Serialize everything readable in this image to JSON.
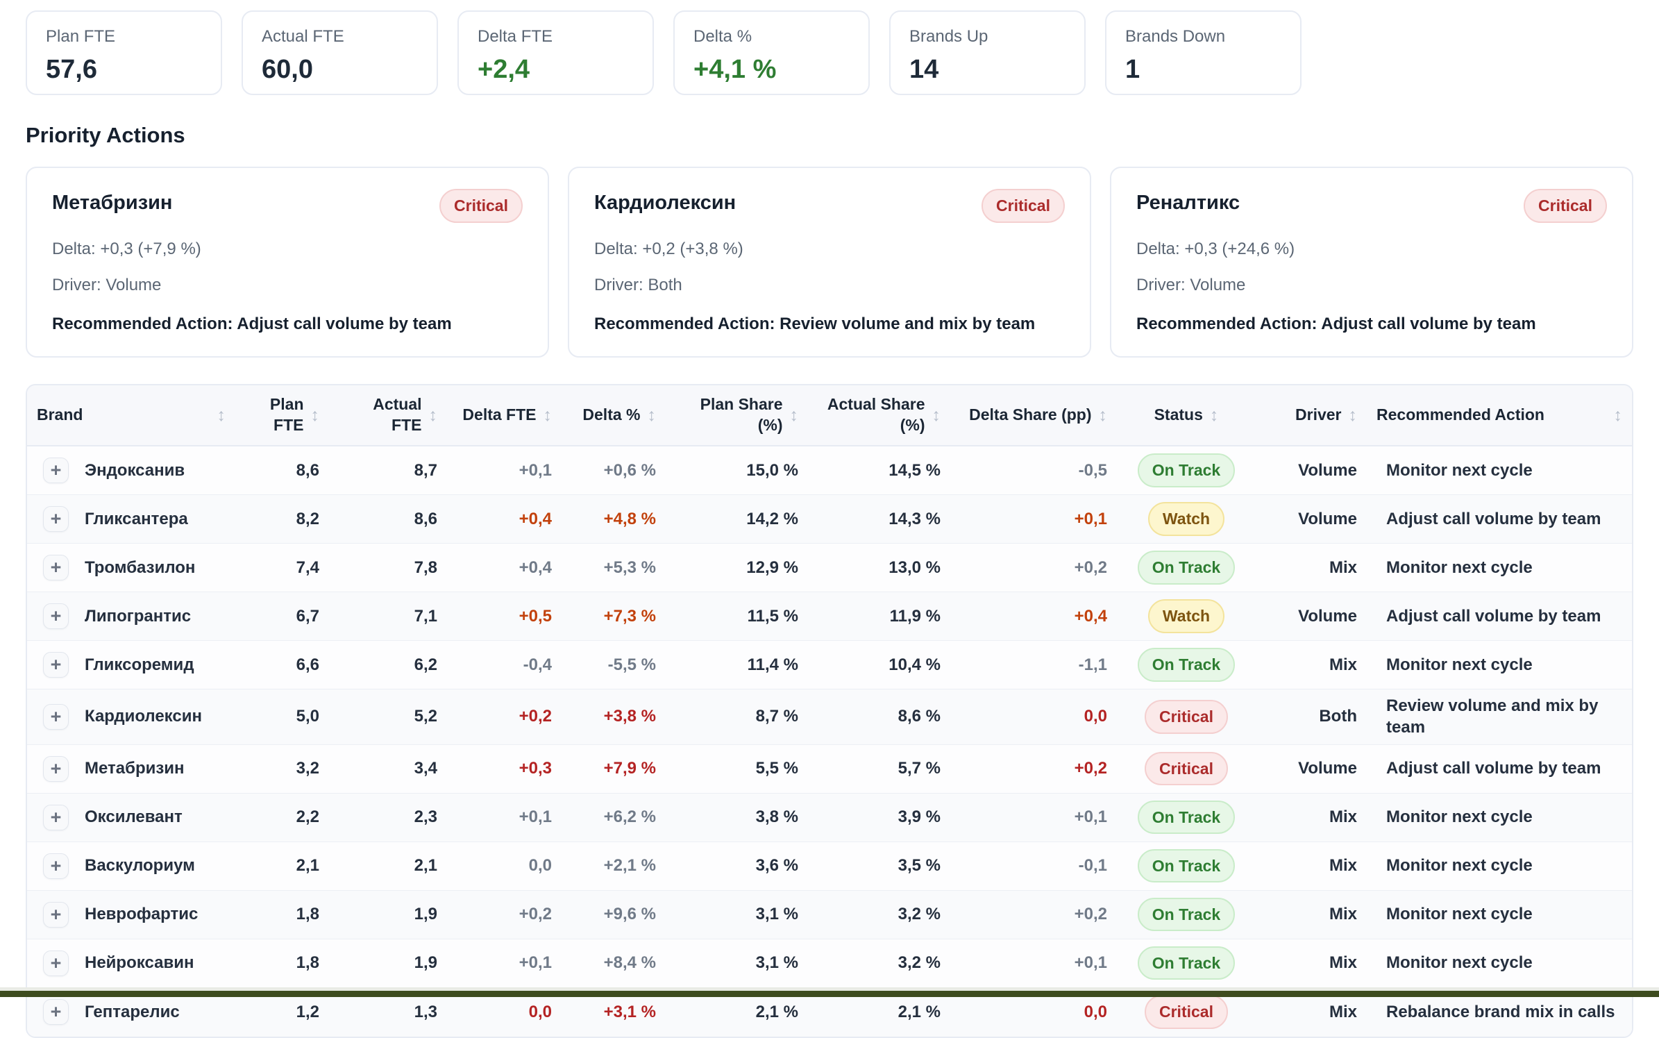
{
  "kpis": [
    {
      "label": "Plan FTE",
      "value": "57,6",
      "tone": "dark"
    },
    {
      "label": "Actual FTE",
      "value": "60,0",
      "tone": "dark"
    },
    {
      "label": "Delta FTE",
      "value": "+2,4",
      "tone": "green"
    },
    {
      "label": "Delta %",
      "value": "+4,1 %",
      "tone": "green"
    },
    {
      "label": "Brands Up",
      "value": "14",
      "tone": "dark"
    },
    {
      "label": "Brands Down",
      "value": "1",
      "tone": "dark"
    }
  ],
  "priority_actions": {
    "title": "Priority Actions",
    "cards": [
      {
        "brand": "Метабризин",
        "badge": "Critical",
        "badge_tone": "red",
        "delta": "Delta: +0,3 (+7,9 %)",
        "driver": "Driver: Volume",
        "action": "Recommended Action: Adjust call volume by team"
      },
      {
        "brand": "Кардиолексин",
        "badge": "Critical",
        "badge_tone": "red",
        "delta": "Delta: +0,2 (+3,8 %)",
        "driver": "Driver: Both",
        "action": "Recommended Action: Review volume and mix by team"
      },
      {
        "brand": "Реналтикс",
        "badge": "Critical",
        "badge_tone": "red",
        "delta": "Delta: +0,3 (+24,6 %)",
        "driver": "Driver: Volume",
        "action": "Recommended Action: Adjust call volume by team"
      }
    ]
  },
  "table": {
    "columns": [
      {
        "label": "Brand",
        "align": "left"
      },
      {
        "label": "Plan FTE",
        "align": "right"
      },
      {
        "label": "Actual FTE",
        "align": "right"
      },
      {
        "label": "Delta FTE",
        "align": "right"
      },
      {
        "label": "Delta %",
        "align": "right"
      },
      {
        "label": "Plan Share (%)",
        "align": "right"
      },
      {
        "label": "Actual Share (%)",
        "align": "right"
      },
      {
        "label": "Delta Share (pp)",
        "align": "right"
      },
      {
        "label": "Status",
        "align": "center"
      },
      {
        "label": "Driver",
        "align": "right"
      },
      {
        "label": "Recommended Action",
        "align": "left"
      }
    ],
    "rows": [
      {
        "brand": "Эндоксанив",
        "plan": "8,6",
        "actual": "8,7",
        "delta": "+0,1",
        "delta_pct": "+0,6 %",
        "plan_share": "15,0 %",
        "actual_share": "14,5 %",
        "delta_share": "-0,5",
        "status": "On Track",
        "status_tone": "green",
        "delta_tone": "neutral",
        "driver": "Volume",
        "action": "Monitor next cycle"
      },
      {
        "brand": "Гликсантера",
        "plan": "8,2",
        "actual": "8,6",
        "delta": "+0,4",
        "delta_pct": "+4,8 %",
        "plan_share": "14,2 %",
        "actual_share": "14,3 %",
        "delta_share": "+0,1",
        "status": "Watch",
        "status_tone": "yellow",
        "delta_tone": "watch",
        "driver": "Volume",
        "action": "Adjust call volume by team"
      },
      {
        "brand": "Тромбазилон",
        "plan": "7,4",
        "actual": "7,8",
        "delta": "+0,4",
        "delta_pct": "+5,3 %",
        "plan_share": "12,9 %",
        "actual_share": "13,0 %",
        "delta_share": "+0,2",
        "status": "On Track",
        "status_tone": "green",
        "delta_tone": "neutral",
        "driver": "Mix",
        "action": "Monitor next cycle"
      },
      {
        "brand": "Липогрантис",
        "plan": "6,7",
        "actual": "7,1",
        "delta": "+0,5",
        "delta_pct": "+7,3 %",
        "plan_share": "11,5 %",
        "actual_share": "11,9 %",
        "delta_share": "+0,4",
        "status": "Watch",
        "status_tone": "yellow",
        "delta_tone": "watch",
        "driver": "Volume",
        "action": "Adjust call volume by team"
      },
      {
        "brand": "Гликсоремид",
        "plan": "6,6",
        "actual": "6,2",
        "delta": "-0,4",
        "delta_pct": "-5,5 %",
        "plan_share": "11,4 %",
        "actual_share": "10,4 %",
        "delta_share": "-1,1",
        "status": "On Track",
        "status_tone": "green",
        "delta_tone": "neutral",
        "driver": "Mix",
        "action": "Monitor next cycle"
      },
      {
        "brand": "Кардиолексин",
        "plan": "5,0",
        "actual": "5,2",
        "delta": "+0,2",
        "delta_pct": "+3,8 %",
        "plan_share": "8,7 %",
        "actual_share": "8,6 %",
        "delta_share": "0,0",
        "status": "Critical",
        "status_tone": "red",
        "delta_tone": "critical",
        "driver": "Both",
        "action": "Review volume and mix by team"
      },
      {
        "brand": "Метабризин",
        "plan": "3,2",
        "actual": "3,4",
        "delta": "+0,3",
        "delta_pct": "+7,9 %",
        "plan_share": "5,5 %",
        "actual_share": "5,7 %",
        "delta_share": "+0,2",
        "status": "Critical",
        "status_tone": "red",
        "delta_tone": "critical",
        "driver": "Volume",
        "action": "Adjust call volume by team"
      },
      {
        "brand": "Оксилевант",
        "plan": "2,2",
        "actual": "2,3",
        "delta": "+0,1",
        "delta_pct": "+6,2 %",
        "plan_share": "3,8 %",
        "actual_share": "3,9 %",
        "delta_share": "+0,1",
        "status": "On Track",
        "status_tone": "green",
        "delta_tone": "neutral",
        "driver": "Mix",
        "action": "Monitor next cycle"
      },
      {
        "brand": "Васкулориум",
        "plan": "2,1",
        "actual": "2,1",
        "delta": "0,0",
        "delta_pct": "+2,1 %",
        "plan_share": "3,6 %",
        "actual_share": "3,5 %",
        "delta_share": "-0,1",
        "status": "On Track",
        "status_tone": "green",
        "delta_tone": "neutral",
        "driver": "Mix",
        "action": "Monitor next cycle"
      },
      {
        "brand": "Неврофартис",
        "plan": "1,8",
        "actual": "1,9",
        "delta": "+0,2",
        "delta_pct": "+9,6 %",
        "plan_share": "3,1 %",
        "actual_share": "3,2 %",
        "delta_share": "+0,2",
        "status": "On Track",
        "status_tone": "green",
        "delta_tone": "neutral",
        "driver": "Mix",
        "action": "Monitor next cycle"
      },
      {
        "brand": "Нейроксавин",
        "plan": "1,8",
        "actual": "1,9",
        "delta": "+0,1",
        "delta_pct": "+8,4 %",
        "plan_share": "3,1 %",
        "actual_share": "3,2 %",
        "delta_share": "+0,1",
        "status": "On Track",
        "status_tone": "green",
        "delta_tone": "neutral",
        "driver": "Mix",
        "action": "Monitor next cycle"
      },
      {
        "brand": "Гептарелис",
        "plan": "1,2",
        "actual": "1,3",
        "delta": "0,0",
        "delta_pct": "+3,1 %",
        "plan_share": "2,1 %",
        "actual_share": "2,1 %",
        "delta_share": "0,0",
        "status": "Critical",
        "status_tone": "red",
        "delta_tone": "critical",
        "driver": "Mix",
        "action": "Rebalance brand mix in calls"
      }
    ]
  },
  "icons": {
    "sort": "↕",
    "expand": "+"
  },
  "colors": {
    "positive_green": "#2e7d32",
    "delta_neutral": "#707a88",
    "delta_watch": "#c2410c",
    "delta_critical": "#b42323",
    "badge_green_bg": "#e7f7e7",
    "badge_yellow_bg": "#fdf6ce",
    "badge_red_bg": "#fbe9e9",
    "window_edge": "#3e4c1f"
  }
}
